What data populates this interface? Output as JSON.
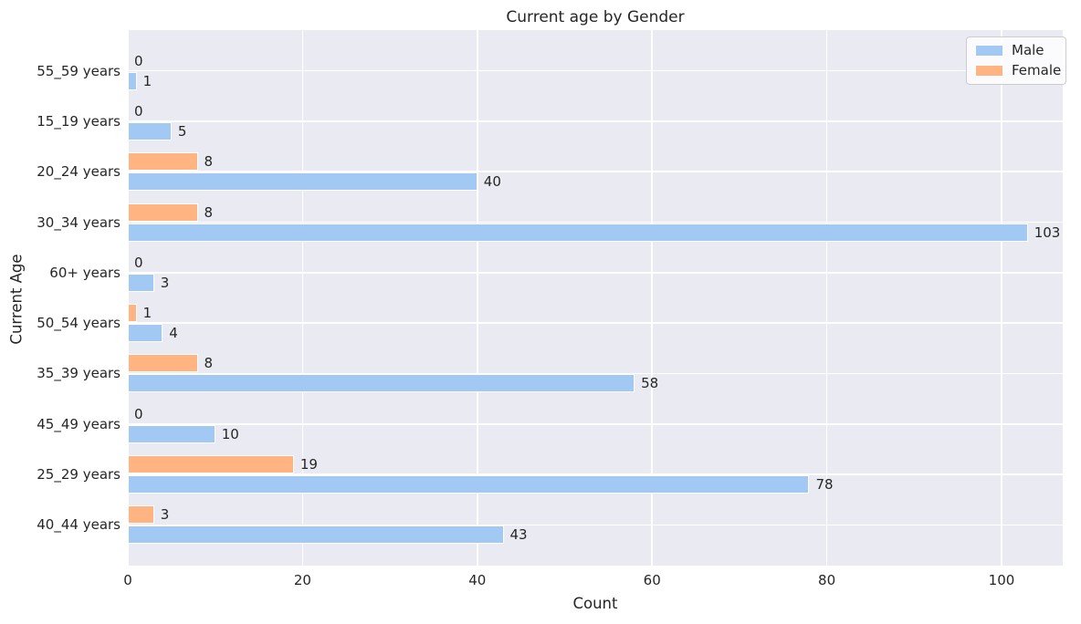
{
  "chart_data": {
    "type": "bar",
    "orientation": "horizontal",
    "title": "Current age by Gender",
    "xlabel": "Count",
    "ylabel": "Current Age",
    "categories": [
      "55_59 years",
      "15_19 years",
      "20_24 years",
      "30_34 years",
      "60+ years",
      "50_54 years",
      "35_39 years",
      "45_49 years",
      "25_29 years",
      "40_44 years"
    ],
    "series": [
      {
        "name": "Male",
        "color": "#a1c9f4",
        "values": [
          1,
          5,
          40,
          103,
          3,
          4,
          58,
          10,
          78,
          43
        ]
      },
      {
        "name": "Female",
        "color": "#ffb482",
        "values": [
          0,
          0,
          8,
          8,
          0,
          1,
          8,
          0,
          19,
          3
        ]
      }
    ],
    "bar_value_labels_shown": true,
    "x_ticks": [
      0,
      20,
      40,
      60,
      80,
      100
    ],
    "xlim": [
      0,
      107
    ],
    "grid": true,
    "legend_position": "upper right",
    "plot_background_color": "#eaeaf2",
    "grid_color": "#ffffff",
    "text_color": "#262626"
  }
}
